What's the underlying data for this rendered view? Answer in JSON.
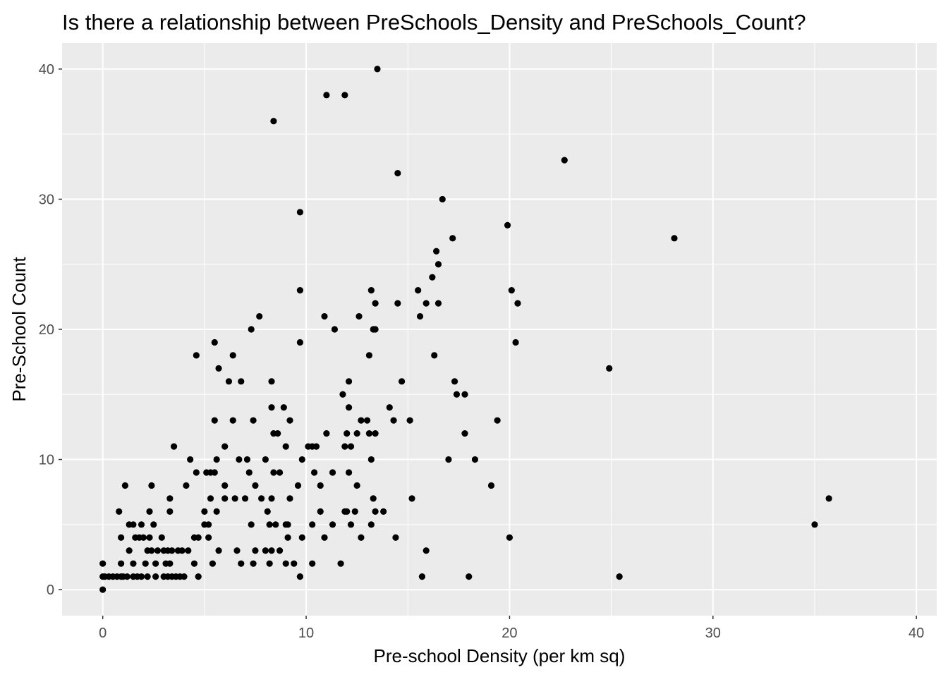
{
  "chart_data": {
    "type": "scatter",
    "title": "Is there a relationship between PreSchools_Density and PreSchools_Count?",
    "xlabel": "Pre-school Density (per km sq)",
    "ylabel": "Pre-School Count",
    "xlim": [
      -2,
      41
    ],
    "ylim": [
      -2,
      42
    ],
    "x_ticks": [
      0,
      10,
      20,
      30,
      40
    ],
    "y_ticks": [
      0,
      10,
      20,
      30,
      40
    ],
    "x_minor": [
      5,
      15,
      25,
      35
    ],
    "y_minor": [
      5,
      15,
      25,
      35
    ],
    "grid": true,
    "background_color": "#EBEBEB",
    "grid_color": "#FFFFFF",
    "point_color": "#000000",
    "points": [
      [
        0,
        0
      ],
      [
        0,
        1
      ],
      [
        0,
        2
      ],
      [
        0.1,
        1
      ],
      [
        0.3,
        1
      ],
      [
        0.5,
        1
      ],
      [
        0.7,
        1
      ],
      [
        0.8,
        6
      ],
      [
        0.9,
        1
      ],
      [
        0.9,
        4
      ],
      [
        0.9,
        2
      ],
      [
        1,
        1
      ],
      [
        1.1,
        8
      ],
      [
        1.2,
        1
      ],
      [
        1.3,
        5
      ],
      [
        1.3,
        3
      ],
      [
        1.5,
        1
      ],
      [
        1.5,
        5
      ],
      [
        1.5,
        2
      ],
      [
        1.6,
        4
      ],
      [
        1.7,
        1
      ],
      [
        1.8,
        4
      ],
      [
        1.9,
        1
      ],
      [
        1.9,
        5
      ],
      [
        2,
        4
      ],
      [
        2.1,
        2
      ],
      [
        2.2,
        3
      ],
      [
        2.2,
        1
      ],
      [
        2.3,
        4
      ],
      [
        2.3,
        6
      ],
      [
        2.4,
        3
      ],
      [
        2.4,
        8
      ],
      [
        2.5,
        5
      ],
      [
        2.6,
        1
      ],
      [
        2.6,
        2
      ],
      [
        2.7,
        3
      ],
      [
        2.9,
        4
      ],
      [
        3,
        1
      ],
      [
        3,
        3
      ],
      [
        3.1,
        2
      ],
      [
        3.2,
        1
      ],
      [
        3.2,
        3
      ],
      [
        3.3,
        6
      ],
      [
        3.3,
        7
      ],
      [
        3.3,
        2
      ],
      [
        3.4,
        1
      ],
      [
        3.4,
        3
      ],
      [
        3.5,
        11
      ],
      [
        3.6,
        1
      ],
      [
        3.7,
        3
      ],
      [
        3.8,
        1
      ],
      [
        3.9,
        3
      ],
      [
        4,
        1
      ],
      [
        4.1,
        8
      ],
      [
        4.2,
        3
      ],
      [
        4.3,
        10
      ],
      [
        4.5,
        4
      ],
      [
        4.5,
        2
      ],
      [
        4.6,
        18
      ],
      [
        4.6,
        9
      ],
      [
        4.7,
        4
      ],
      [
        4.7,
        1
      ],
      [
        5,
        6
      ],
      [
        5,
        5
      ],
      [
        5.1,
        9
      ],
      [
        5.2,
        4
      ],
      [
        5.2,
        5
      ],
      [
        5.3,
        9
      ],
      [
        5.3,
        7
      ],
      [
        5.4,
        2
      ],
      [
        5.5,
        9
      ],
      [
        5.5,
        19
      ],
      [
        5.5,
        13
      ],
      [
        5.6,
        6
      ],
      [
        5.6,
        10
      ],
      [
        5.7,
        17
      ],
      [
        5.7,
        3
      ],
      [
        6,
        11
      ],
      [
        6,
        8
      ],
      [
        6,
        7
      ],
      [
        6.2,
        16
      ],
      [
        6.4,
        18
      ],
      [
        6.4,
        13
      ],
      [
        6.5,
        7
      ],
      [
        6.6,
        3
      ],
      [
        6.7,
        10
      ],
      [
        6.8,
        16
      ],
      [
        6.8,
        2
      ],
      [
        7,
        7
      ],
      [
        7.1,
        10
      ],
      [
        7.2,
        9
      ],
      [
        7.3,
        5
      ],
      [
        7.3,
        20
      ],
      [
        7.4,
        13
      ],
      [
        7.4,
        2
      ],
      [
        7.5,
        8
      ],
      [
        7.5,
        3
      ],
      [
        7.7,
        21
      ],
      [
        7.8,
        7
      ],
      [
        8,
        3
      ],
      [
        8,
        10
      ],
      [
        8.1,
        6
      ],
      [
        8.2,
        5
      ],
      [
        8.2,
        2
      ],
      [
        8.3,
        14
      ],
      [
        8.3,
        16
      ],
      [
        8.3,
        7
      ],
      [
        8.3,
        3
      ],
      [
        8.4,
        12
      ],
      [
        8.4,
        9
      ],
      [
        8.4,
        36
      ],
      [
        8.5,
        5
      ],
      [
        8.6,
        12
      ],
      [
        8.7,
        3
      ],
      [
        8.7,
        9
      ],
      [
        8.9,
        14
      ],
      [
        9,
        5
      ],
      [
        9,
        11
      ],
      [
        9,
        2
      ],
      [
        9.1,
        4
      ],
      [
        9.1,
        5
      ],
      [
        9.2,
        13
      ],
      [
        9.2,
        7
      ],
      [
        9.4,
        2
      ],
      [
        9.6,
        8
      ],
      [
        9.7,
        23
      ],
      [
        9.7,
        29
      ],
      [
        9.7,
        19
      ],
      [
        9.7,
        1
      ],
      [
        9.8,
        10
      ],
      [
        9.8,
        4
      ],
      [
        10.1,
        11
      ],
      [
        10.3,
        11
      ],
      [
        10.3,
        5
      ],
      [
        10.3,
        2
      ],
      [
        10.4,
        9
      ],
      [
        10.5,
        11
      ],
      [
        10.7,
        8
      ],
      [
        10.7,
        6
      ],
      [
        10.9,
        4
      ],
      [
        10.9,
        21
      ],
      [
        11,
        38
      ],
      [
        11,
        12
      ],
      [
        11.3,
        9
      ],
      [
        11.3,
        5
      ],
      [
        11.4,
        20
      ],
      [
        11.7,
        2
      ],
      [
        11.8,
        15
      ],
      [
        11.9,
        6
      ],
      [
        11.9,
        38
      ],
      [
        11.9,
        11
      ],
      [
        12,
        12
      ],
      [
        12,
        6
      ],
      [
        12.1,
        9
      ],
      [
        12.1,
        16
      ],
      [
        12.1,
        14
      ],
      [
        12.2,
        11
      ],
      [
        12.2,
        5
      ],
      [
        12.4,
        6
      ],
      [
        12.5,
        8
      ],
      [
        12.5,
        12
      ],
      [
        12.6,
        21
      ],
      [
        12.7,
        13
      ],
      [
        12.7,
        4
      ],
      [
        13,
        13
      ],
      [
        13.1,
        18
      ],
      [
        13.1,
        12
      ],
      [
        13.2,
        23
      ],
      [
        13.2,
        10
      ],
      [
        13.2,
        5
      ],
      [
        13.3,
        20
      ],
      [
        13.3,
        7
      ],
      [
        13.4,
        12
      ],
      [
        13.4,
        20
      ],
      [
        13.4,
        22
      ],
      [
        13.4,
        6
      ],
      [
        13.5,
        40
      ],
      [
        13.8,
        6
      ],
      [
        14.1,
        14
      ],
      [
        14.3,
        13
      ],
      [
        14.4,
        4
      ],
      [
        14.5,
        32
      ],
      [
        14.5,
        22
      ],
      [
        14.7,
        16
      ],
      [
        15.1,
        13
      ],
      [
        15.2,
        7
      ],
      [
        15.5,
        23
      ],
      [
        15.6,
        21
      ],
      [
        15.7,
        1
      ],
      [
        15.9,
        3
      ],
      [
        15.9,
        22
      ],
      [
        16.2,
        24
      ],
      [
        16.3,
        18
      ],
      [
        16.4,
        26
      ],
      [
        16.5,
        22
      ],
      [
        16.5,
        25
      ],
      [
        16.7,
        30
      ],
      [
        17,
        10
      ],
      [
        17.2,
        27
      ],
      [
        17.3,
        16
      ],
      [
        17.4,
        15
      ],
      [
        17.8,
        12
      ],
      [
        17.8,
        15
      ],
      [
        18,
        1
      ],
      [
        18.3,
        10
      ],
      [
        19.1,
        8
      ],
      [
        19.4,
        13
      ],
      [
        19.9,
        28
      ],
      [
        20,
        4
      ],
      [
        20.1,
        23
      ],
      [
        20.3,
        19
      ],
      [
        20.4,
        22
      ],
      [
        22.7,
        33
      ],
      [
        24.9,
        17
      ],
      [
        25.4,
        1
      ],
      [
        28.1,
        27
      ],
      [
        35,
        5
      ],
      [
        35.7,
        7
      ]
    ]
  }
}
